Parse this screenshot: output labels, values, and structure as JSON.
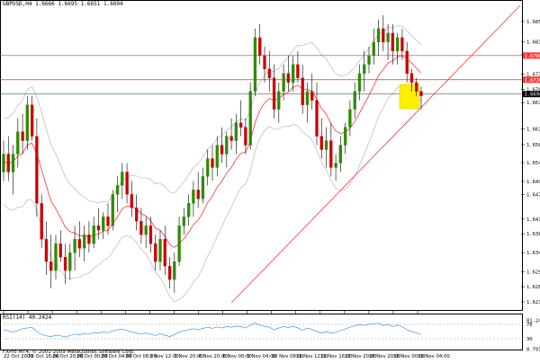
{
  "header": {
    "symbol_info": "GBPUSD,H4  1.6666 1.6695 1.6651 1.6694"
  },
  "indicator": {
    "rsi_label": "RSI(14) 40.2424",
    "rsi_levels": [
      "81.2486",
      "70",
      "30",
      "0.7915"
    ]
  },
  "footer": {
    "copyright": "FXPro MT4, © 2001-2009 MetaQuotes Software Corp."
  },
  "colors": {
    "bull": "#2e8b00",
    "bear": "#cc0000",
    "ma": "#ff3333",
    "band": "#b8b8b8",
    "trendline": "#ff3333",
    "hline": "#dd3333",
    "highlight": "#ffee00",
    "rsi": "#3a9ae8",
    "grid": "#000000"
  },
  "chart_data": {
    "type": "candlestick",
    "symbol": "GBPUSD",
    "timeframe": "H4",
    "y_ticks": [
      "1.6856",
      "1.6811",
      "1.6782",
      "1.6739",
      "1.6704",
      "1.6675",
      "1.6616",
      "1.6581",
      "1.6541",
      "1.6499",
      "1.6470",
      "1.6415",
      "1.6382",
      "1.6340",
      "1.6297",
      "1.6264",
      "1.6230"
    ],
    "ylim": [
      1.6228,
      1.6888
    ],
    "price_labels": [
      {
        "text": "1.6780",
        "color": "#ff3333"
      },
      {
        "text": "1.6726",
        "color": "#ff3333"
      },
      {
        "text": "1.6694",
        "color": "#000000"
      }
    ],
    "x_ticks": [
      "22 Oct 2009",
      "23 Oct 16:00",
      "26 Oct 20:00",
      "28 Oct 00:00",
      "29 Oct 04:00",
      "30 Oct 08:00",
      "2 Nov 12:00",
      "3 Nov 20:00",
      "4 Nov 20:00",
      "6 Nov 00:00",
      "9 Nov 04:00",
      "10 Nov 08:00",
      "11 Nov 12:00",
      "12 Nov 16:00",
      "13 Nov 20:00",
      "16 Nov 20:00",
      "18 Nov 00:00",
      "19 Nov 04:00"
    ],
    "ohlc": [
      [
        1.652,
        1.659,
        1.65,
        1.656
      ],
      [
        1.656,
        1.66,
        1.65,
        1.652
      ],
      [
        1.652,
        1.658,
        1.647,
        1.656
      ],
      [
        1.656,
        1.664,
        1.653,
        1.661
      ],
      [
        1.661,
        1.665,
        1.656,
        1.659
      ],
      [
        1.659,
        1.669,
        1.657,
        1.667
      ],
      [
        1.667,
        1.669,
        1.659,
        1.66
      ],
      [
        1.66,
        1.664,
        1.642,
        1.645
      ],
      [
        1.645,
        1.647,
        1.635,
        1.637
      ],
      [
        1.637,
        1.641,
        1.629,
        1.632
      ],
      [
        1.632,
        1.638,
        1.626,
        1.63
      ],
      [
        1.63,
        1.638,
        1.628,
        1.636
      ],
      [
        1.636,
        1.639,
        1.632,
        1.633
      ],
      [
        1.633,
        1.636,
        1.627,
        1.63
      ],
      [
        1.63,
        1.636,
        1.628,
        1.634
      ],
      [
        1.634,
        1.64,
        1.63,
        1.637
      ],
      [
        1.637,
        1.641,
        1.633,
        1.635
      ],
      [
        1.635,
        1.64,
        1.632,
        1.638
      ],
      [
        1.638,
        1.641,
        1.634,
        1.636
      ],
      [
        1.636,
        1.642,
        1.635,
        1.64
      ],
      [
        1.64,
        1.644,
        1.637,
        1.639
      ],
      [
        1.639,
        1.643,
        1.637,
        1.642
      ],
      [
        1.642,
        1.645,
        1.638,
        1.64
      ],
      [
        1.64,
        1.648,
        1.639,
        1.647
      ],
      [
        1.647,
        1.651,
        1.643,
        1.649
      ],
      [
        1.649,
        1.654,
        1.646,
        1.652
      ],
      [
        1.652,
        1.654,
        1.645,
        1.647
      ],
      [
        1.647,
        1.65,
        1.642,
        1.644
      ],
      [
        1.644,
        1.647,
        1.639,
        1.641
      ],
      [
        1.641,
        1.644,
        1.636,
        1.638
      ],
      [
        1.638,
        1.642,
        1.635,
        1.64
      ],
      [
        1.64,
        1.642,
        1.634,
        1.636
      ],
      [
        1.636,
        1.638,
        1.63,
        1.632
      ],
      [
        1.632,
        1.639,
        1.63,
        1.637
      ],
      [
        1.637,
        1.64,
        1.629,
        1.631
      ],
      [
        1.631,
        1.633,
        1.626,
        1.628
      ],
      [
        1.628,
        1.634,
        1.625,
        1.632
      ],
      [
        1.632,
        1.642,
        1.631,
        1.64
      ],
      [
        1.64,
        1.644,
        1.638,
        1.642
      ],
      [
        1.642,
        1.647,
        1.64,
        1.645
      ],
      [
        1.645,
        1.65,
        1.642,
        1.648
      ],
      [
        1.648,
        1.652,
        1.644,
        1.646
      ],
      [
        1.646,
        1.653,
        1.645,
        1.651
      ],
      [
        1.651,
        1.657,
        1.649,
        1.655
      ],
      [
        1.655,
        1.658,
        1.65,
        1.653
      ],
      [
        1.653,
        1.66,
        1.651,
        1.658
      ],
      [
        1.658,
        1.662,
        1.654,
        1.656
      ],
      [
        1.656,
        1.661,
        1.653,
        1.66
      ],
      [
        1.66,
        1.664,
        1.657,
        1.659
      ],
      [
        1.659,
        1.665,
        1.656,
        1.663
      ],
      [
        1.663,
        1.668,
        1.66,
        1.662
      ],
      [
        1.662,
        1.664,
        1.656,
        1.658
      ],
      [
        1.658,
        1.672,
        1.657,
        1.67
      ],
      [
        1.67,
        1.684,
        1.669,
        1.682
      ],
      [
        1.682,
        1.685,
        1.676,
        1.678
      ],
      [
        1.678,
        1.68,
        1.672,
        1.675
      ],
      [
        1.675,
        1.679,
        1.67,
        1.673
      ],
      [
        1.673,
        1.676,
        1.664,
        1.666
      ],
      [
        1.666,
        1.672,
        1.663,
        1.67
      ],
      [
        1.67,
        1.676,
        1.668,
        1.674
      ],
      [
        1.674,
        1.678,
        1.67,
        1.672
      ],
      [
        1.672,
        1.678,
        1.67,
        1.676
      ],
      [
        1.676,
        1.679,
        1.672,
        1.673
      ],
      [
        1.673,
        1.676,
        1.665,
        1.667
      ],
      [
        1.667,
        1.672,
        1.663,
        1.67
      ],
      [
        1.67,
        1.674,
        1.666,
        1.668
      ],
      [
        1.668,
        1.672,
        1.658,
        1.66
      ],
      [
        1.66,
        1.664,
        1.655,
        1.657
      ],
      [
        1.657,
        1.662,
        1.653,
        1.659
      ],
      [
        1.659,
        1.663,
        1.651,
        1.653
      ],
      [
        1.653,
        1.656,
        1.65,
        1.654
      ],
      [
        1.654,
        1.66,
        1.652,
        1.658
      ],
      [
        1.658,
        1.663,
        1.656,
        1.662
      ],
      [
        1.662,
        1.668,
        1.66,
        1.666
      ],
      [
        1.666,
        1.672,
        1.664,
        1.67
      ],
      [
        1.67,
        1.676,
        1.668,
        1.674
      ],
      [
        1.674,
        1.679,
        1.67,
        1.676
      ],
      [
        1.676,
        1.68,
        1.674,
        1.678
      ],
      [
        1.678,
        1.684,
        1.676,
        1.681
      ],
      [
        1.681,
        1.686,
        1.678,
        1.684
      ],
      [
        1.684,
        1.687,
        1.679,
        1.681
      ],
      [
        1.681,
        1.685,
        1.677,
        1.683
      ],
      [
        1.683,
        1.685,
        1.676,
        1.679
      ],
      [
        1.679,
        1.683,
        1.676,
        1.682
      ],
      [
        1.682,
        1.684,
        1.677,
        1.679
      ],
      [
        1.679,
        1.681,
        1.672,
        1.674
      ],
      [
        1.674,
        1.675,
        1.67,
        1.672
      ],
      [
        1.672,
        1.673,
        1.669,
        1.67
      ],
      [
        1.67,
        1.671,
        1.666,
        1.669
      ]
    ],
    "rsi": [
      55,
      52,
      48,
      53,
      58,
      60,
      62,
      50,
      42,
      38,
      36,
      40,
      38,
      35,
      39,
      43,
      41,
      45,
      43,
      47,
      46,
      49,
      47,
      52,
      55,
      57,
      53,
      49,
      46,
      43,
      46,
      43,
      39,
      44,
      40,
      36,
      41,
      49,
      52,
      55,
      58,
      55,
      59,
      62,
      59,
      63,
      60,
      64,
      62,
      65,
      64,
      60,
      68,
      74,
      68,
      64,
      62,
      55,
      60,
      64,
      61,
      65,
      60,
      54,
      59,
      56,
      50,
      46,
      50,
      45,
      48,
      53,
      57,
      62,
      66,
      69,
      67,
      70,
      72,
      73,
      67,
      70,
      64,
      68,
      63,
      55,
      50,
      46,
      42
    ],
    "ma_start": 1.654,
    "band_half_width": 0.0095,
    "trendline": {
      "from_index": 48,
      "from_price": 1.6228,
      "to_index": 88,
      "to_price": 1.6888
    },
    "horizontal_lines": [
      1.678,
      1.6726,
      1.6694
    ]
  }
}
